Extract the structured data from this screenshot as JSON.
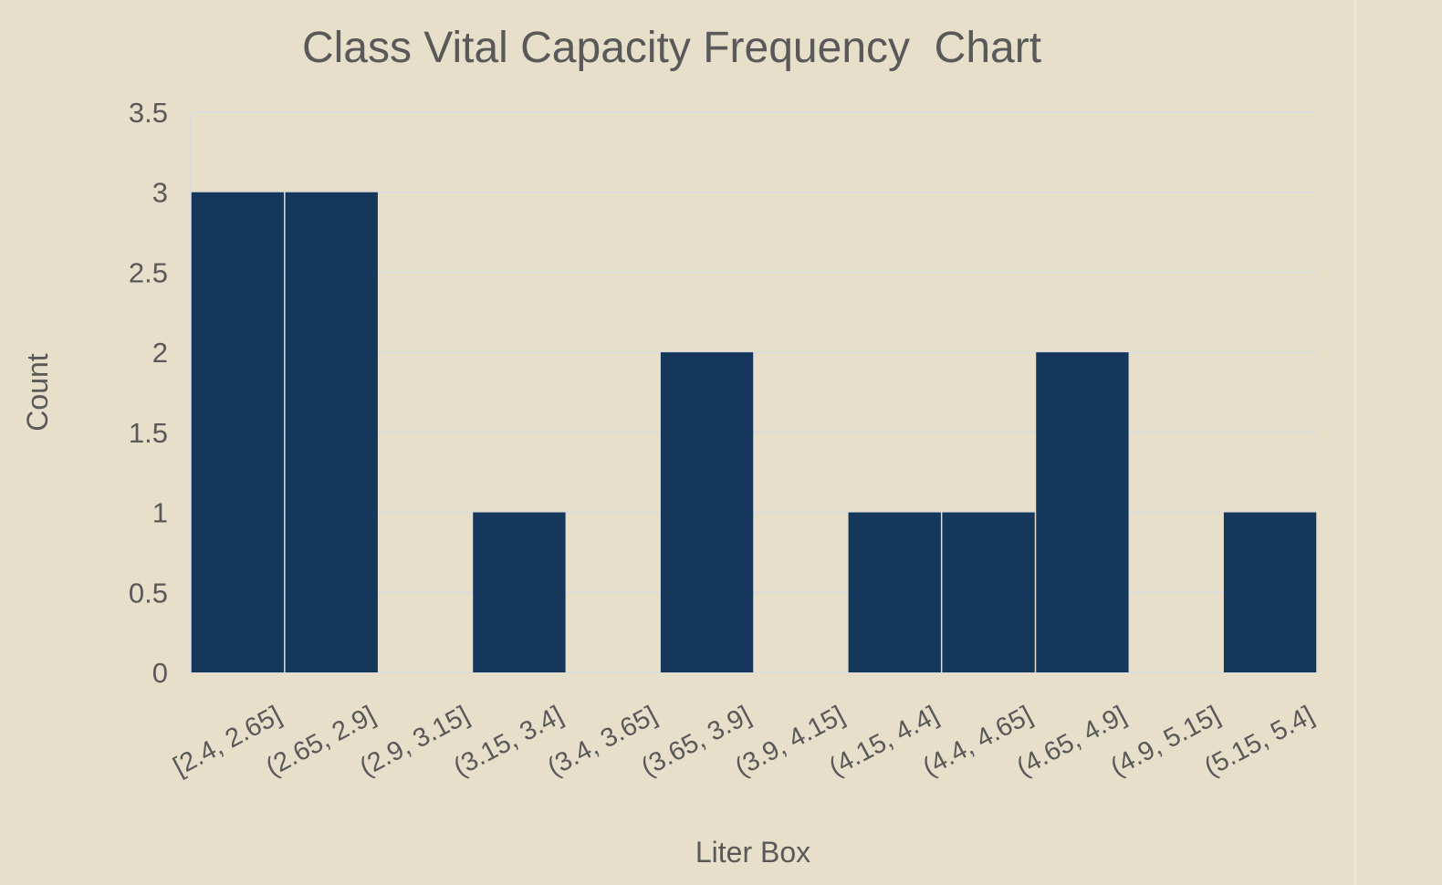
{
  "chart_data": {
    "type": "bar",
    "title": "Class Vital Capacity Frequency  Chart",
    "xlabel": "Liter Box",
    "ylabel": "Count",
    "categories": [
      "[2.4, 2.65]",
      "(2.65, 2.9]",
      "(2.9, 3.15]",
      "(3.15, 3.4]",
      "(3.4, 3.65]",
      "(3.65, 3.9]",
      "(3.9, 4.15]",
      "(4.15, 4.4]",
      "(4.4, 4.65]",
      "(4.65, 4.9]",
      "(4.9, 5.15]",
      "(5.15, 5.4]"
    ],
    "values": [
      3,
      3,
      0,
      1,
      0,
      2,
      0,
      1,
      1,
      2,
      0,
      1
    ],
    "ylim": [
      0,
      3.5
    ],
    "yticks": [
      "0",
      "0.5",
      "1",
      "1.5",
      "2",
      "2.5",
      "3",
      "3.5"
    ],
    "grid": true,
    "legend": "none",
    "colors": {
      "background": "#e8dfcb",
      "bar": "#14375b",
      "gridline": "#dcdcdc",
      "text": "#595959"
    }
  }
}
